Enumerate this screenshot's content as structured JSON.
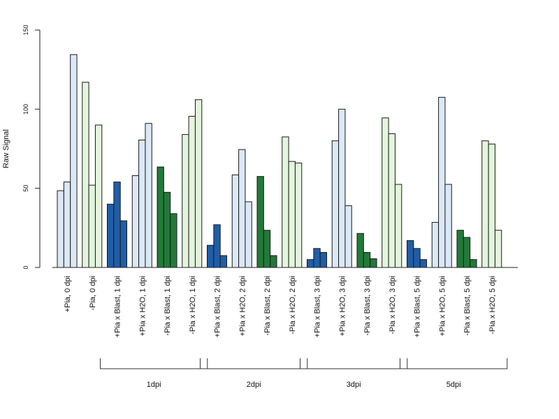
{
  "chart_data": {
    "type": "bar",
    "ylabel": "Raw Signal",
    "xlabel": "",
    "ylim": [
      0,
      150
    ],
    "yticks": [
      0,
      50,
      100,
      150
    ],
    "colors": {
      "pia_plus": "#dbe8f6",
      "pia_minus": "#e3f5dc",
      "blast_plus": "#1f5ea8",
      "blast_minus": "#217a38"
    },
    "categories": [
      {
        "label": "+Pia, 0 dpi",
        "color_key": "pia_plus",
        "values": [
          48.5,
          54,
          134.5
        ]
      },
      {
        "label": "-Pia, 0 dpi",
        "color_key": "pia_minus",
        "values": [
          117,
          52,
          90
        ]
      },
      {
        "label": "+Pia x Blast, 1 dpi",
        "color_key": "blast_plus",
        "values": [
          40,
          54,
          29.5
        ]
      },
      {
        "label": "+Pia x H2O, 1 dpi",
        "color_key": "pia_plus",
        "values": [
          58,
          80.5,
          91
        ]
      },
      {
        "label": "-Pia x Blast, 1 dpi",
        "color_key": "blast_minus",
        "values": [
          63.5,
          47.5,
          34
        ]
      },
      {
        "label": "-Pia x H2O, 1 dpi",
        "color_key": "pia_minus",
        "values": [
          84,
          95.5,
          106
        ]
      },
      {
        "label": "+Pia x Blast, 2 dpi",
        "color_key": "blast_plus",
        "values": [
          14,
          27,
          7.5
        ]
      },
      {
        "label": "+Pia x H2O, 2 dpi",
        "color_key": "pia_plus",
        "values": [
          58.5,
          74.5,
          41.5
        ]
      },
      {
        "label": "-Pia x Blast, 2 dpi",
        "color_key": "blast_minus",
        "values": [
          57.5,
          23.5,
          7.5
        ]
      },
      {
        "label": "-Pia x H2O, 2 dpi",
        "color_key": "pia_minus",
        "values": [
          82.5,
          67,
          66
        ]
      },
      {
        "label": "+Pia x Blast, 3 dpi",
        "color_key": "blast_plus",
        "values": [
          5,
          12,
          9.5
        ]
      },
      {
        "label": "+Pia x H2O, 3 dpi",
        "color_key": "pia_plus",
        "values": [
          80,
          100,
          39
        ]
      },
      {
        "label": "-Pia x Blast, 3 dpi",
        "color_key": "blast_minus",
        "values": [
          21.5,
          9.5,
          5.5
        ]
      },
      {
        "label": "-Pia x H2O, 3 dpi",
        "color_key": "pia_minus",
        "values": [
          94.5,
          84.5,
          52.5
        ]
      },
      {
        "label": "+Pia x Blast, 5 dpi",
        "color_key": "blast_plus",
        "values": [
          17,
          12,
          5
        ]
      },
      {
        "label": "+Pia x H2O, 5 dpi",
        "color_key": "pia_plus",
        "values": [
          28.5,
          107.5,
          52.5
        ]
      },
      {
        "label": "-Pia x Blast, 5 dpi",
        "color_key": "blast_minus",
        "values": [
          23.5,
          19,
          5
        ]
      },
      {
        "label": "-Pia x H2O, 5 dpi",
        "color_key": "pia_minus",
        "values": [
          80,
          78,
          23.5
        ]
      }
    ],
    "groups": [
      {
        "label": "1dpi",
        "from_category": 2,
        "to_category": 5
      },
      {
        "label": "2dpi",
        "from_category": 6,
        "to_category": 9
      },
      {
        "label": "3dpi",
        "from_category": 10,
        "to_category": 13
      },
      {
        "label": "5dpi",
        "from_category": 14,
        "to_category": 17
      }
    ]
  }
}
